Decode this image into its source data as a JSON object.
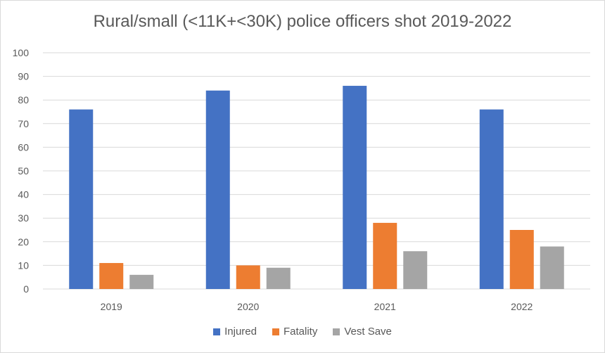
{
  "chart_data": {
    "type": "bar",
    "title": "Rural/small (<11K+<30K) police officers shot 2019-2022",
    "xlabel": "",
    "ylabel": "",
    "categories": [
      "2019",
      "2020",
      "2021",
      "2022"
    ],
    "series": [
      {
        "name": "Injured",
        "values": [
          76,
          84,
          86,
          76
        ],
        "color": "#4472c4"
      },
      {
        "name": "Fatality",
        "values": [
          11,
          10,
          28,
          25
        ],
        "color": "#ed7d31"
      },
      {
        "name": "Vest Save",
        "values": [
          6,
          9,
          16,
          18
        ],
        "color": "#a5a5a5"
      }
    ],
    "ylim": [
      0,
      100
    ],
    "yticks": [
      0,
      10,
      20,
      30,
      40,
      50,
      60,
      70,
      80,
      90,
      100
    ],
    "grid": true,
    "legend_position": "bottom"
  }
}
